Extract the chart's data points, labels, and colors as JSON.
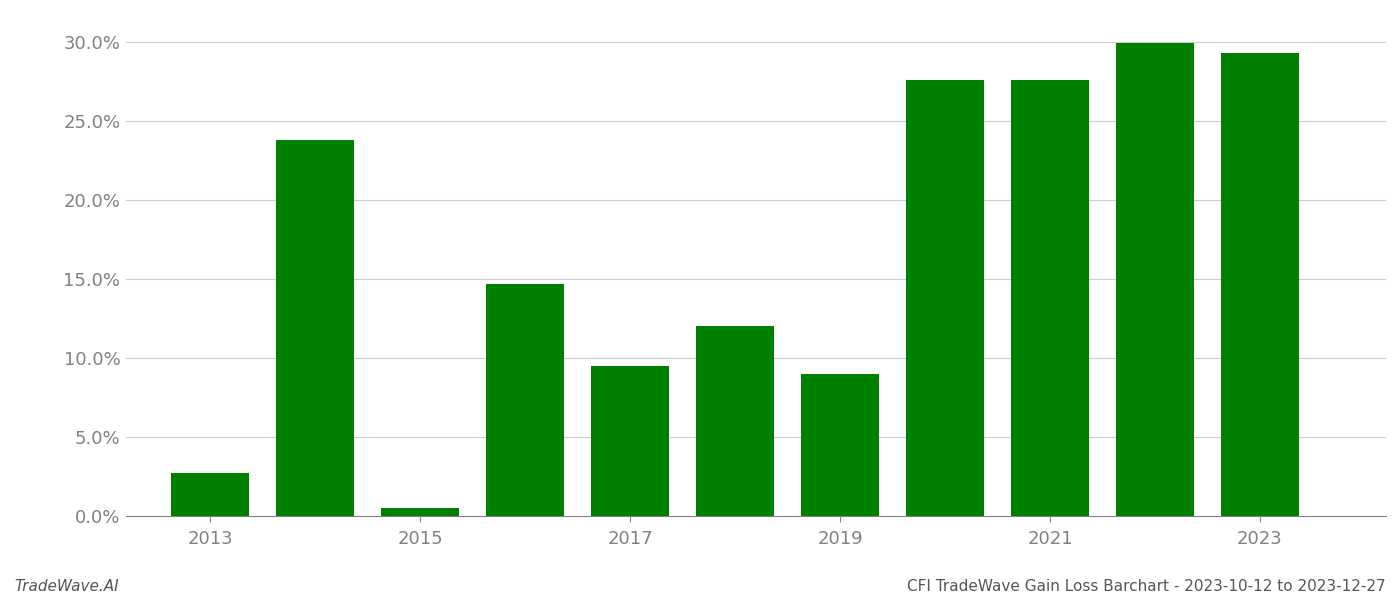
{
  "years": [
    2013,
    2014,
    2015,
    2016,
    2017,
    2018,
    2019,
    2020,
    2021,
    2022,
    2023
  ],
  "values": [
    0.027,
    0.238,
    0.005,
    0.147,
    0.095,
    0.12,
    0.09,
    0.276,
    0.276,
    0.299,
    0.293
  ],
  "bar_color": "#008000",
  "background_color": "#ffffff",
  "yticks": [
    0.0,
    0.05,
    0.1,
    0.15,
    0.2,
    0.25,
    0.3
  ],
  "ytick_labels": [
    "0.0%",
    "5.0%",
    "10.0%",
    "15.0%",
    "20.0%",
    "25.0%",
    "30.0%"
  ],
  "xtick_positions": [
    2013,
    2015,
    2017,
    2019,
    2021,
    2023
  ],
  "xtick_labels": [
    "2013",
    "2015",
    "2017",
    "2019",
    "2021",
    "2023"
  ],
  "xlim": [
    2012.2,
    2024.2
  ],
  "ylim": [
    0.0,
    0.315
  ],
  "footer_left": "TradeWave.AI",
  "footer_right": "CFI TradeWave Gain Loss Barchart - 2023-10-12 to 2023-12-27",
  "grid_color": "#cccccc",
  "tick_color": "#808080",
  "bar_width": 0.75,
  "font_size_ticks": 13,
  "font_size_footer": 11
}
